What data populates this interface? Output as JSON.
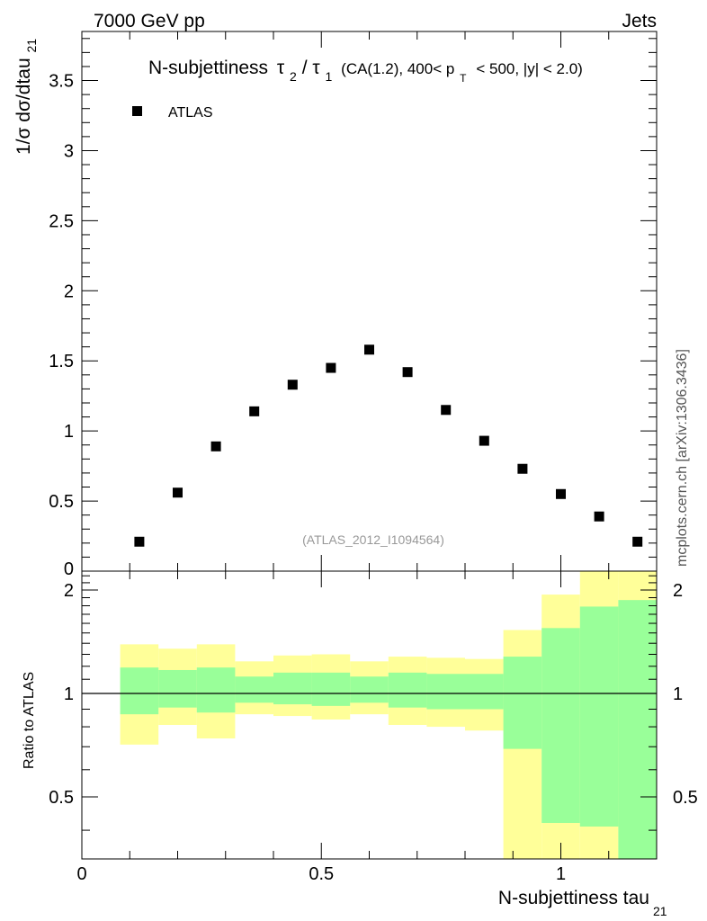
{
  "header": {
    "energy_label": "7000 GeV pp",
    "process_label": "Jets",
    "side_label": "mcplots.cern.ch [arXiv:1306.3436]"
  },
  "chart_data": [
    {
      "type": "scatter",
      "title_main": "N-subjettiness",
      "title_tau2": "τ",
      "title_tau2_sub": "2",
      "title_slash": "/",
      "title_tau1": "τ",
      "title_tau1_sub": "1",
      "title_cond1": "(CA(1.2), 400< p",
      "title_cond_sub": "T",
      "title_cond2": "< 500, |y| < 2.0)",
      "ylabel": "1/σ dσ/dtau",
      "ylabel_sub": "21",
      "legend": "ATLAS",
      "watermark": "(ATLAS_2012_I1094564)",
      "xlim": [
        0,
        1.2
      ],
      "ylim": [
        0,
        3.85
      ],
      "yticks": [
        {
          "v": 0,
          "label": "0"
        },
        {
          "v": 0.5,
          "label": "0.5"
        },
        {
          "v": 1,
          "label": "1"
        },
        {
          "v": 1.5,
          "label": "1.5"
        },
        {
          "v": 2,
          "label": "2"
        },
        {
          "v": 2.5,
          "label": "2.5"
        },
        {
          "v": 3,
          "label": "3"
        },
        {
          "v": 3.5,
          "label": "3.5"
        }
      ],
      "x": [
        0.12,
        0.2,
        0.28,
        0.36,
        0.44,
        0.52,
        0.6,
        0.68,
        0.76,
        0.84,
        0.92,
        1.0,
        1.08,
        1.16
      ],
      "values": [
        0.21,
        0.56,
        0.89,
        1.14,
        1.33,
        1.45,
        1.58,
        1.42,
        1.15,
        0.93,
        0.73,
        0.55,
        0.39,
        0.21
      ]
    },
    {
      "type": "area",
      "ylabel": "Ratio to ATLAS",
      "xlabel": "N-subjettiness tau",
      "xlabel_sub": "21",
      "xlim": [
        0,
        1.2
      ],
      "ylim": [
        0.33,
        2.27
      ],
      "yscale": "log",
      "reference_line": 1,
      "xticks": [
        {
          "v": 0,
          "label": "0"
        },
        {
          "v": 0.5,
          "label": "0.5"
        },
        {
          "v": 1,
          "label": "1"
        }
      ],
      "yticks": [
        {
          "v": 0.5,
          "label": "0.5"
        },
        {
          "v": 1,
          "label": "1"
        },
        {
          "v": 2,
          "label": "2"
        }
      ],
      "bin_edges": [
        0.08,
        0.16,
        0.24,
        0.32,
        0.4,
        0.48,
        0.56,
        0.64,
        0.72,
        0.8,
        0.88,
        0.96,
        1.04,
        1.12,
        1.2
      ],
      "series": [
        {
          "name": "outer band",
          "color": "#ffff99",
          "low": [
            0.71,
            0.81,
            0.74,
            0.87,
            0.86,
            0.84,
            0.87,
            0.81,
            0.8,
            0.78,
            0.33,
            0.33,
            0.33,
            0.33
          ],
          "high": [
            1.39,
            1.35,
            1.39,
            1.24,
            1.29,
            1.3,
            1.24,
            1.28,
            1.27,
            1.26,
            1.53,
            1.94,
            2.27,
            2.27
          ]
        },
        {
          "name": "inner band",
          "color": "#99ff99",
          "low": [
            0.87,
            0.91,
            0.88,
            0.94,
            0.93,
            0.92,
            0.94,
            0.91,
            0.9,
            0.9,
            0.69,
            0.42,
            0.41,
            0.33
          ],
          "high": [
            1.19,
            1.17,
            1.19,
            1.12,
            1.15,
            1.15,
            1.12,
            1.15,
            1.14,
            1.14,
            1.28,
            1.55,
            1.79,
            1.87
          ]
        }
      ]
    }
  ]
}
